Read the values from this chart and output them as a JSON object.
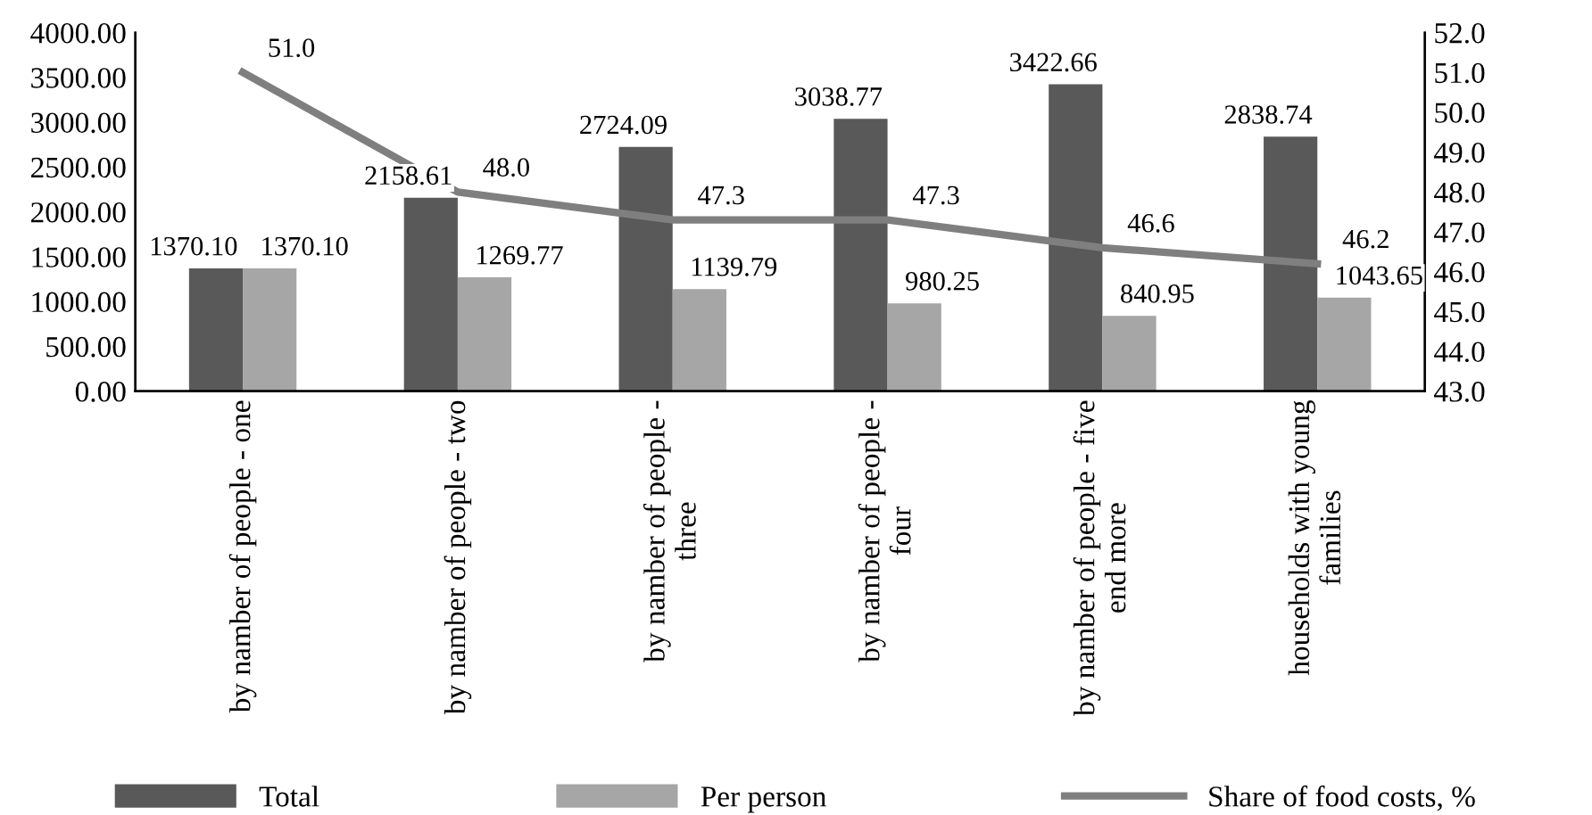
{
  "chart_data": {
    "type": "bar",
    "categories": [
      "by namber of people - one",
      "by namber of people - two",
      "by namber of people -\nthree",
      "by namber of people -\nfour",
      "by namber of people - five\nend more",
      "households with young\nfamilies"
    ],
    "series": [
      {
        "name": "Total",
        "color": "#595959",
        "values": [
          1370.1,
          2158.61,
          2724.09,
          3038.77,
          3422.66,
          2838.74
        ],
        "value_labels": [
          "1370.10",
          "2158.61",
          "2724.09",
          "3038.77",
          "3422.66",
          "2838.74"
        ]
      },
      {
        "name": "Per person",
        "color": "#a6a6a6",
        "values": [
          1370.1,
          1269.77,
          1139.79,
          980.25,
          840.95,
          1043.65
        ],
        "value_labels": [
          "1370.10",
          "1269.77",
          "1139.79",
          "980.25",
          "840.95",
          "1043.65"
        ]
      },
      {
        "name": "Share of food costs, %",
        "type": "line",
        "axis": "y2",
        "color": "#7f7f7f",
        "values": [
          51.0,
          48.0,
          47.3,
          47.3,
          46.6,
          46.2
        ],
        "value_labels": [
          "51.0",
          "48.0",
          "47.3",
          "47.3",
          "46.6",
          "46.2"
        ]
      }
    ],
    "ylim": [
      0,
      4000
    ],
    "yticks": [
      {
        "value": 0,
        "label": "0.00"
      },
      {
        "value": 500,
        "label": "500.00"
      },
      {
        "value": 1000,
        "label": "1000.00"
      },
      {
        "value": 1500,
        "label": "1500.00"
      },
      {
        "value": 2000,
        "label": "2000.00"
      },
      {
        "value": 2500,
        "label": "2500.00"
      },
      {
        "value": 3000,
        "label": "3000.00"
      },
      {
        "value": 3500,
        "label": "3500.00"
      },
      {
        "value": 4000,
        "label": "4000.00"
      }
    ],
    "y2lim": [
      43,
      52
    ],
    "y2ticks": [
      {
        "value": 43,
        "label": "43.0"
      },
      {
        "value": 44,
        "label": "44.0"
      },
      {
        "value": 45,
        "label": "45.0"
      },
      {
        "value": 46,
        "label": "46.0"
      },
      {
        "value": 47,
        "label": "47.0"
      },
      {
        "value": 48,
        "label": "48.0"
      },
      {
        "value": 49,
        "label": "49.0"
      },
      {
        "value": 50,
        "label": "50.0"
      },
      {
        "value": 51,
        "label": "51.0"
      },
      {
        "value": 52,
        "label": "52.0"
      }
    ],
    "legend": "bottom",
    "grid": false
  }
}
